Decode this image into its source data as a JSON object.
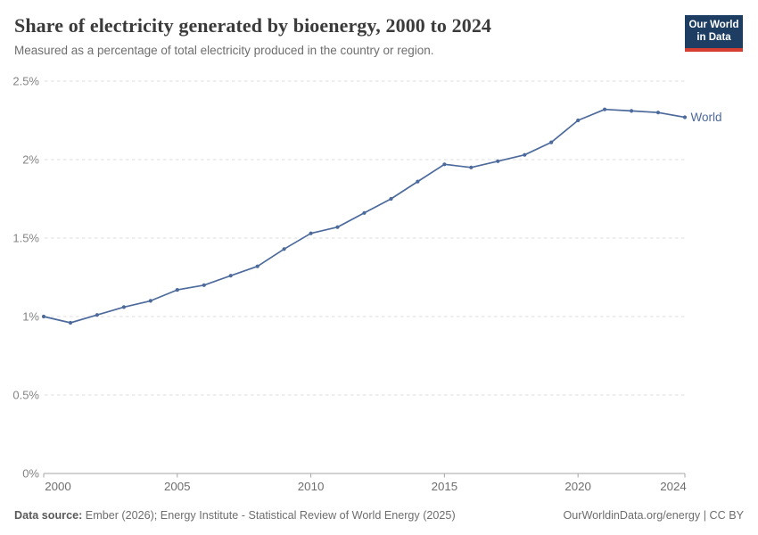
{
  "header": {
    "title": "Share of electricity generated by bioenergy, 2000 to 2024",
    "subtitle": "Measured as a percentage of total electricity produced in the country or region.",
    "logo": {
      "line1": "Our World",
      "line2": "in Data",
      "bg_color": "#1d3d63",
      "accent_color": "#d63e32"
    }
  },
  "chart_data": {
    "type": "line",
    "title": "Share of electricity generated by bioenergy, 2000 to 2024",
    "xlabel": "",
    "ylabel": "",
    "xlim": [
      2000,
      2024
    ],
    "ylim": [
      0,
      2.5
    ],
    "grid": "horizontal-dashed",
    "legend_position": "end-of-line-label",
    "grid_color": "#dcdcdc",
    "axis_color": "#a5a5a5",
    "y_tick_color": "#848484",
    "x_tick_color": "#6e6e6e",
    "x_ticks": [
      {
        "value": 2000,
        "label": "2000"
      },
      {
        "value": 2005,
        "label": "2005"
      },
      {
        "value": 2010,
        "label": "2010"
      },
      {
        "value": 2015,
        "label": "2015"
      },
      {
        "value": 2020,
        "label": "2020"
      },
      {
        "value": 2024,
        "label": "2024"
      }
    ],
    "y_ticks": [
      {
        "value": 0,
        "label": "0%"
      },
      {
        "value": 0.5,
        "label": "0.5%"
      },
      {
        "value": 1,
        "label": "1%"
      },
      {
        "value": 1.5,
        "label": "1.5%"
      },
      {
        "value": 2,
        "label": "2%"
      },
      {
        "value": 2.5,
        "label": "2.5%"
      }
    ],
    "series": [
      {
        "name": "World",
        "color": "#4c6a9c",
        "x": [
          2000,
          2001,
          2002,
          2003,
          2004,
          2005,
          2006,
          2007,
          2008,
          2009,
          2010,
          2011,
          2012,
          2013,
          2014,
          2015,
          2016,
          2017,
          2018,
          2019,
          2020,
          2021,
          2022,
          2023,
          2024
        ],
        "values": [
          1.0,
          0.96,
          1.01,
          1.06,
          1.1,
          1.17,
          1.2,
          1.26,
          1.32,
          1.43,
          1.53,
          1.57,
          1.66,
          1.75,
          1.86,
          1.97,
          1.95,
          1.99,
          2.03,
          2.11,
          2.25,
          2.32,
          2.31,
          2.3,
          2.27
        ]
      }
    ]
  },
  "footer": {
    "source_label": "Data source:",
    "source_text": "Ember (2026); Energy Institute - Statistical Review of World Energy (2025)",
    "right_text": "OurWorldinData.org/energy | CC BY"
  }
}
